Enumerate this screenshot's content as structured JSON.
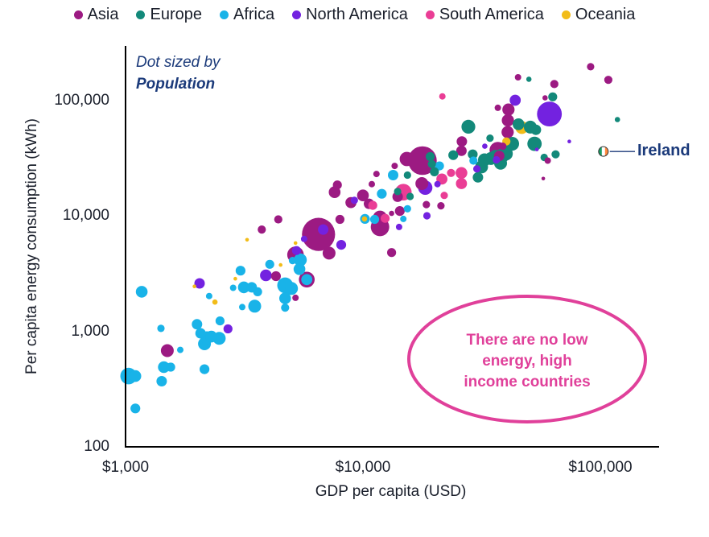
{
  "chart_data": {
    "type": "scatter",
    "subtype": "bubble",
    "xlabel": "GDP per capita (USD)",
    "ylabel": "Per capita energy consumption (kWh)",
    "xscale": "log",
    "yscale": "log",
    "xlim": [
      1000,
      200000
    ],
    "ylim": [
      100,
      300000
    ],
    "x_ticks": [
      {
        "value": 1000,
        "label": "$1,000"
      },
      {
        "value": 10000,
        "label": "$10,000"
      },
      {
        "value": 100000,
        "label": "$100,000"
      }
    ],
    "y_ticks": [
      {
        "value": 100,
        "label": "100"
      },
      {
        "value": 1000,
        "label": "1,000"
      },
      {
        "value": 10000,
        "label": "10,000"
      },
      {
        "value": 100000,
        "label": "100,000"
      }
    ],
    "grid": false,
    "legend_position": "top",
    "size_note": {
      "line1": "Dot sized by",
      "line2": "Population"
    },
    "annotation": "There are no low energy, high income countries",
    "annotation_lines": [
      "There are no low",
      "energy, high",
      "income countries"
    ],
    "highlight": {
      "label": "Ireland",
      "gdp": 103000,
      "energy": 36000
    },
    "series": [
      {
        "name": "Asia",
        "color": "#9c1a82"
      },
      {
        "name": "Europe",
        "color": "#13897a"
      },
      {
        "name": "Africa",
        "color": "#19b3e8"
      },
      {
        "name": "North America",
        "color": "#7322e0"
      },
      {
        "name": "South America",
        "color": "#ea3d95"
      },
      {
        "name": "Oceania",
        "color": "#f2bc18"
      }
    ],
    "points": [
      {
        "r": "Africa",
        "gdp": 1030,
        "energy": 410,
        "pop": 20
      },
      {
        "r": "Africa",
        "gdp": 1100,
        "energy": 410,
        "pop": 10
      },
      {
        "r": "Africa",
        "gdp": 1170,
        "energy": 2200,
        "pop": 10
      },
      {
        "r": "Africa",
        "gdp": 1100,
        "energy": 215,
        "pop": 7
      },
      {
        "r": "Africa",
        "gdp": 1410,
        "energy": 1060,
        "pop": 4
      },
      {
        "r": "Africa",
        "gdp": 1420,
        "energy": 370,
        "pop": 8
      },
      {
        "r": "Africa",
        "gdp": 1450,
        "energy": 490,
        "pop": 10
      },
      {
        "r": "Africa",
        "gdp": 1550,
        "energy": 490,
        "pop": 6
      },
      {
        "r": "Asia",
        "gdp": 1500,
        "energy": 680,
        "pop": 12
      },
      {
        "r": "Africa",
        "gdp": 1700,
        "energy": 690,
        "pop": 3
      },
      {
        "r": "Africa",
        "gdp": 2000,
        "energy": 1150,
        "pop": 8
      },
      {
        "r": "Africa",
        "gdp": 2070,
        "energy": 960,
        "pop": 8
      },
      {
        "r": "Africa",
        "gdp": 2150,
        "energy": 780,
        "pop": 12
      },
      {
        "r": "Africa",
        "gdp": 2200,
        "energy": 880,
        "pop": 12
      },
      {
        "r": "Africa",
        "gdp": 2300,
        "energy": 900,
        "pop": 10
      },
      {
        "r": "Africa",
        "gdp": 2480,
        "energy": 870,
        "pop": 12
      },
      {
        "r": "Africa",
        "gdp": 2150,
        "energy": 470,
        "pop": 7
      },
      {
        "r": "Africa",
        "gdp": 2500,
        "energy": 1230,
        "pop": 6
      },
      {
        "r": "North America",
        "gdp": 2700,
        "energy": 1050,
        "pop": 6
      },
      {
        "r": "North America",
        "gdp": 2050,
        "energy": 2600,
        "pop": 8
      },
      {
        "r": "Oceania",
        "gdp": 1950,
        "energy": 2450,
        "pop": 1
      },
      {
        "r": "Africa",
        "gdp": 2250,
        "energy": 2020,
        "pop": 3
      },
      {
        "r": "Oceania",
        "gdp": 2380,
        "energy": 1790,
        "pop": 2
      },
      {
        "r": "Africa",
        "gdp": 2840,
        "energy": 2380,
        "pop": 3
      },
      {
        "r": "Oceania",
        "gdp": 2900,
        "energy": 2850,
        "pop": 1
      },
      {
        "r": "Africa",
        "gdp": 3050,
        "energy": 3350,
        "pop": 7
      },
      {
        "r": "Africa",
        "gdp": 3150,
        "energy": 2400,
        "pop": 10
      },
      {
        "r": "Africa",
        "gdp": 3400,
        "energy": 2400,
        "pop": 8
      },
      {
        "r": "Africa",
        "gdp": 3100,
        "energy": 1620,
        "pop": 3
      },
      {
        "r": "Africa",
        "gdp": 3500,
        "energy": 1650,
        "pop": 12
      },
      {
        "r": "Africa",
        "gdp": 3600,
        "energy": 2200,
        "pop": 6
      },
      {
        "r": "Oceania",
        "gdp": 3250,
        "energy": 6200,
        "pop": 1
      },
      {
        "r": "North America",
        "gdp": 3900,
        "energy": 3050,
        "pop": 10
      },
      {
        "r": "Asia",
        "gdp": 4300,
        "energy": 3000,
        "pop": 7
      },
      {
        "r": "Asia",
        "gdp": 3750,
        "energy": 7600,
        "pop": 5
      },
      {
        "r": "Asia",
        "gdp": 4400,
        "energy": 9300,
        "pop": 5
      },
      {
        "r": "Africa",
        "gdp": 4050,
        "energy": 3800,
        "pop": 6
      },
      {
        "r": "Oceania",
        "gdp": 4500,
        "energy": 3750,
        "pop": 1
      },
      {
        "r": "Africa",
        "gdp": 4700,
        "energy": 2500,
        "pop": 18
      },
      {
        "r": "Africa",
        "gdp": 5000,
        "energy": 2350,
        "pop": 12
      },
      {
        "r": "Africa",
        "gdp": 4700,
        "energy": 1930,
        "pop": 10
      },
      {
        "r": "Africa",
        "gdp": 4700,
        "energy": 1600,
        "pop": 5
      },
      {
        "r": "Asia",
        "gdp": 5200,
        "energy": 1950,
        "pop": 3
      },
      {
        "r": "Asia",
        "gdp": 5200,
        "energy": 4600,
        "pop": 20
      },
      {
        "r": "Africa",
        "gdp": 5450,
        "energy": 4150,
        "pop": 12
      },
      {
        "r": "Africa",
        "gdp": 5400,
        "energy": 3450,
        "pop": 10
      },
      {
        "r": "North America",
        "gdp": 5250,
        "energy": 5000,
        "pop": 6
      },
      {
        "r": "Africa",
        "gdp": 5050,
        "energy": 4100,
        "pop": 4
      },
      {
        "r": "Asia",
        "gdp": 5800,
        "energy": 2800,
        "pop": 18
      },
      {
        "r": "Africa",
        "gdp": 5800,
        "energy": 2800,
        "pop": 9
      },
      {
        "r": "Oceania",
        "gdp": 5200,
        "energy": 5800,
        "pop": 1
      },
      {
        "r": "Asia",
        "gdp": 6500,
        "energy": 6900,
        "pop": 80
      },
      {
        "r": "North America",
        "gdp": 5650,
        "energy": 6300,
        "pop": 3
      },
      {
        "r": "North America",
        "gdp": 6800,
        "energy": 7600,
        "pop": 8
      },
      {
        "r": "Asia",
        "gdp": 7200,
        "energy": 4750,
        "pop": 12
      },
      {
        "r": "Asia",
        "gdp": 8000,
        "energy": 9300,
        "pop": 6
      },
      {
        "r": "North America",
        "gdp": 8100,
        "energy": 5600,
        "pop": 7
      },
      {
        "r": "Asia",
        "gdp": 7600,
        "energy": 16000,
        "pop": 10
      },
      {
        "r": "Asia",
        "gdp": 7800,
        "energy": 18500,
        "pop": 6
      },
      {
        "r": "Asia",
        "gdp": 8900,
        "energy": 13000,
        "pop": 9
      },
      {
        "r": "North America",
        "gdp": 9200,
        "energy": 13600,
        "pop": 4
      },
      {
        "r": "Asia",
        "gdp": 10000,
        "energy": 15000,
        "pop": 10
      },
      {
        "r": "Africa",
        "gdp": 10200,
        "energy": 9400,
        "pop": 7
      },
      {
        "r": "Oceania",
        "gdp": 10150,
        "energy": 9400,
        "pop": 2
      },
      {
        "r": "Asia",
        "gdp": 10600,
        "energy": 12700,
        "pop": 8
      },
      {
        "r": "South America",
        "gdp": 11000,
        "energy": 12300,
        "pop": 6
      },
      {
        "r": "Africa",
        "gdp": 11200,
        "energy": 9300,
        "pop": 6
      },
      {
        "r": "Asia",
        "gdp": 11800,
        "energy": 8000,
        "pop": 25
      },
      {
        "r": "Asia",
        "gdp": 11800,
        "energy": 9600,
        "pop": 15
      },
      {
        "r": "South America",
        "gdp": 12400,
        "energy": 9500,
        "pop": 6
      },
      {
        "r": "Asia",
        "gdp": 11400,
        "energy": 23000,
        "pop": 3
      },
      {
        "r": "Asia",
        "gdp": 10900,
        "energy": 18800,
        "pop": 3
      },
      {
        "r": "Africa",
        "gdp": 12000,
        "energy": 15500,
        "pop": 7
      },
      {
        "r": "Asia",
        "gdp": 13200,
        "energy": 10500,
        "pop": 2
      },
      {
        "r": "Asia",
        "gdp": 13200,
        "energy": 4800,
        "pop": 6
      },
      {
        "r": "Asia",
        "gdp": 13600,
        "energy": 27000,
        "pop": 3
      },
      {
        "r": "Africa",
        "gdp": 13400,
        "energy": 22500,
        "pop": 8
      },
      {
        "r": "Europe",
        "gdp": 14000,
        "energy": 16200,
        "pop": 4
      },
      {
        "r": "South America",
        "gdp": 14800,
        "energy": 16000,
        "pop": 20
      },
      {
        "r": "Asia",
        "gdp": 14000,
        "energy": 14600,
        "pop": 8
      },
      {
        "r": "Asia",
        "gdp": 15300,
        "energy": 31000,
        "pop": 15
      },
      {
        "r": "Asia",
        "gdp": 14300,
        "energy": 11000,
        "pop": 7
      },
      {
        "r": "North America",
        "gdp": 14200,
        "energy": 8000,
        "pop": 3
      },
      {
        "r": "Africa",
        "gdp": 14800,
        "energy": 9400,
        "pop": 3
      },
      {
        "r": "Africa",
        "gdp": 15400,
        "energy": 11500,
        "pop": 4
      },
      {
        "r": "Europe",
        "gdp": 15400,
        "energy": 22500,
        "pop": 4
      },
      {
        "r": "Europe",
        "gdp": 15800,
        "energy": 14700,
        "pop": 4
      },
      {
        "r": "Asia",
        "gdp": 17800,
        "energy": 30000,
        "pop": 60
      },
      {
        "r": "Europe",
        "gdp": 19200,
        "energy": 32500,
        "pop": 6
      },
      {
        "r": "Europe",
        "gdp": 19500,
        "energy": 28000,
        "pop": 5
      },
      {
        "r": "North America",
        "gdp": 18300,
        "energy": 17500,
        "pop": 15
      },
      {
        "r": "Asia",
        "gdp": 17700,
        "energy": 19000,
        "pop": 12
      },
      {
        "r": "Asia",
        "gdp": 18500,
        "energy": 12500,
        "pop": 4
      },
      {
        "r": "North America",
        "gdp": 18600,
        "energy": 10000,
        "pop": 4
      },
      {
        "r": "Africa",
        "gdp": 21000,
        "energy": 27000,
        "pop": 6
      },
      {
        "r": "South America",
        "gdp": 21500,
        "energy": 20800,
        "pop": 9
      },
      {
        "r": "Europe",
        "gdp": 20000,
        "energy": 24000,
        "pop": 6
      },
      {
        "r": "North America",
        "gdp": 20600,
        "energy": 18800,
        "pop": 3
      },
      {
        "r": "South America",
        "gdp": 22000,
        "energy": 15000,
        "pop": 4
      },
      {
        "r": "Asia",
        "gdp": 21300,
        "energy": 12200,
        "pop": 4
      },
      {
        "r": "South America",
        "gdp": 23500,
        "energy": 23500,
        "pop": 5
      },
      {
        "r": "South America",
        "gdp": 26000,
        "energy": 23500,
        "pop": 10
      },
      {
        "r": "Europe",
        "gdp": 24000,
        "energy": 33500,
        "pop": 7
      },
      {
        "r": "Asia",
        "gdp": 26000,
        "energy": 36500,
        "pop": 8
      },
      {
        "r": "Asia",
        "gdp": 26100,
        "energy": 44000,
        "pop": 8
      },
      {
        "r": "South America",
        "gdp": 26000,
        "energy": 19000,
        "pop": 9
      },
      {
        "r": "South America",
        "gdp": 21600,
        "energy": 108000,
        "pop": 3
      },
      {
        "r": "Europe",
        "gdp": 27800,
        "energy": 59000,
        "pop": 14
      },
      {
        "r": "Europe",
        "gdp": 29000,
        "energy": 34000,
        "pop": 7
      },
      {
        "r": "Africa",
        "gdp": 29200,
        "energy": 30000,
        "pop": 5
      },
      {
        "r": "Europe",
        "gdp": 30500,
        "energy": 21500,
        "pop": 8
      },
      {
        "r": "North America",
        "gdp": 30200,
        "energy": 25500,
        "pop": 4
      },
      {
        "r": "Europe",
        "gdp": 31600,
        "energy": 26500,
        "pop": 12
      },
      {
        "r": "Europe",
        "gdp": 32500,
        "energy": 30500,
        "pop": 12
      },
      {
        "r": "Europe",
        "gdp": 34600,
        "energy": 31300,
        "pop": 12
      },
      {
        "r": "Europe",
        "gdp": 36000,
        "energy": 33000,
        "pop": 10
      },
      {
        "r": "Asia",
        "gdp": 37000,
        "energy": 37000,
        "pop": 20
      },
      {
        "r": "Asia",
        "gdp": 37500,
        "energy": 33000,
        "pop": 8
      },
      {
        "r": "Europe",
        "gdp": 38500,
        "energy": 33000,
        "pop": 15
      },
      {
        "r": "Europe",
        "gdp": 38000,
        "energy": 28500,
        "pop": 12
      },
      {
        "r": "North America",
        "gdp": 36500,
        "energy": 30500,
        "pop": 4
      },
      {
        "r": "Europe",
        "gdp": 40000,
        "energy": 34500,
        "pop": 14
      },
      {
        "r": "Oceania",
        "gdp": 40200,
        "energy": 44000,
        "pop": 5
      },
      {
        "r": "North America",
        "gdp": 32600,
        "energy": 40000,
        "pop": 2
      },
      {
        "r": "Europe",
        "gdp": 42500,
        "energy": 42000,
        "pop": 14
      },
      {
        "r": "Europe",
        "gdp": 34300,
        "energy": 47000,
        "pop": 4
      },
      {
        "r": "Asia",
        "gdp": 38800,
        "energy": 40000,
        "pop": 4
      },
      {
        "r": "Asia",
        "gdp": 37000,
        "energy": 86000,
        "pop": 3
      },
      {
        "r": "Asia",
        "gdp": 40700,
        "energy": 53000,
        "pop": 11
      },
      {
        "r": "Asia",
        "gdp": 40800,
        "energy": 67000,
        "pop": 11
      },
      {
        "r": "Asia",
        "gdp": 41000,
        "energy": 83000,
        "pop": 11
      },
      {
        "r": "North America",
        "gdp": 43800,
        "energy": 100000,
        "pop": 9
      },
      {
        "r": "Europe",
        "gdp": 45200,
        "energy": 62000,
        "pop": 10
      },
      {
        "r": "Oceania",
        "gdp": 46700,
        "energy": 58000,
        "pop": 12
      },
      {
        "r": "Europe",
        "gdp": 50700,
        "energy": 58500,
        "pop": 12
      },
      {
        "r": "Europe",
        "gdp": 52800,
        "energy": 42000,
        "pop": 15
      },
      {
        "r": "Europe",
        "gdp": 53500,
        "energy": 55500,
        "pop": 8
      },
      {
        "r": "Asia",
        "gdp": 45000,
        "energy": 158000,
        "pop": 3
      },
      {
        "r": "Europe",
        "gdp": 50000,
        "energy": 152000,
        "pop": 2
      },
      {
        "r": "Asia",
        "gdp": 64000,
        "energy": 138000,
        "pop": 5
      },
      {
        "r": "North America",
        "gdp": 61000,
        "energy": 76000,
        "pop": 45
      },
      {
        "r": "Europe",
        "gdp": 63000,
        "energy": 107000,
        "pop": 6
      },
      {
        "r": "Asia",
        "gdp": 58500,
        "energy": 105000,
        "pop": 2
      },
      {
        "r": "Europe",
        "gdp": 64800,
        "energy": 34000,
        "pop": 5
      },
      {
        "r": "Europe",
        "gdp": 58000,
        "energy": 32000,
        "pop": 4
      },
      {
        "r": "Asia",
        "gdp": 60000,
        "energy": 30000,
        "pop": 3
      },
      {
        "r": "Asia",
        "gdp": 57500,
        "energy": 21000,
        "pop": 1
      },
      {
        "r": "North America",
        "gdp": 54000,
        "energy": 37500,
        "pop": 1
      },
      {
        "r": "North America",
        "gdp": 74000,
        "energy": 44000,
        "pop": 1
      },
      {
        "r": "Asia",
        "gdp": 91000,
        "energy": 195000,
        "pop": 4
      },
      {
        "r": "Asia",
        "gdp": 108000,
        "energy": 150000,
        "pop": 5
      },
      {
        "r": "Europe",
        "gdp": 118000,
        "energy": 68000,
        "pop": 2
      }
    ]
  },
  "legend": {
    "items": [
      {
        "label": "Asia",
        "color": "#9c1a82"
      },
      {
        "label": "Europe",
        "color": "#13897a"
      },
      {
        "label": "Africa",
        "color": "#19b3e8"
      },
      {
        "label": "North America",
        "color": "#7322e0"
      },
      {
        "label": "South America",
        "color": "#ea3d95"
      },
      {
        "label": "Oceania",
        "color": "#f2bc18"
      }
    ]
  },
  "colors": {
    "axis": "#000000",
    "note_text": "#1b3a7a",
    "annotation": "#e0409a",
    "ireland_flag": [
      "#169b62",
      "#ffffff",
      "#ff883e"
    ]
  }
}
